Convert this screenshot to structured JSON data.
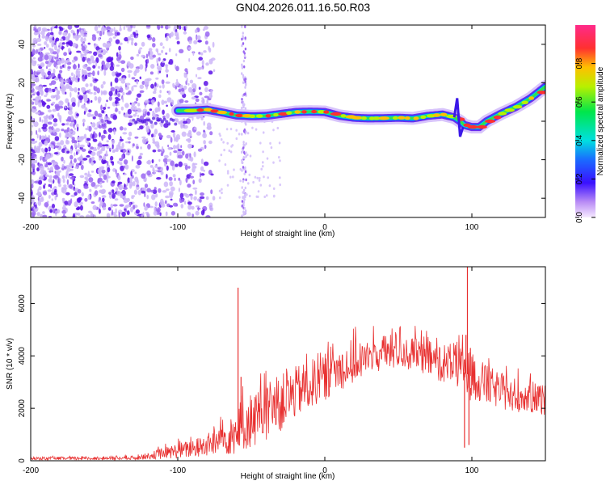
{
  "title": "GN04.2026.011.16.50.R03",
  "colors": {
    "background": "#ffffff",
    "snr_line": "#e83030",
    "frame": "#000000",
    "scatter": "#6a1fe0"
  },
  "chart_data": [
    {
      "type": "heatmap",
      "title": "GN04.2026.011.16.50.R03",
      "xlabel": "Height of straight line (km)",
      "ylabel": "Frequency (Hz)",
      "xlim": [
        -200,
        150
      ],
      "ylim": [
        -50,
        50
      ],
      "x_ticks": [
        -200,
        -100,
        0,
        100
      ],
      "x_tick_labels": [
        "-200",
        "-100",
        "0",
        "100"
      ],
      "y_ticks": [
        -40,
        -20,
        0,
        20,
        40
      ],
      "y_tick_labels": [
        "-40",
        "-20",
        "0",
        "20",
        "40"
      ],
      "colorbar": {
        "label": "Normalized spectral amplitude",
        "range": [
          0,
          1
        ],
        "ticks": [
          0.0,
          0.2,
          0.4,
          0.6,
          0.8
        ],
        "tick_labels": [
          "0.0",
          "0.2",
          "0.4",
          "0.6",
          "0.8"
        ]
      },
      "ridge": {
        "x": [
          -100,
          -90,
          -80,
          -70,
          -60,
          -50,
          -40,
          -30,
          -20,
          -10,
          0,
          10,
          20,
          30,
          40,
          50,
          60,
          70,
          80,
          88,
          92,
          95,
          100,
          105,
          110,
          120,
          130,
          140,
          150
        ],
        "y": [
          5.5,
          5.6,
          6.0,
          4.6,
          3.0,
          2.6,
          2.8,
          3.8,
          4.8,
          5.0,
          4.8,
          2.8,
          1.8,
          1.5,
          1.6,
          1.8,
          1.5,
          2.8,
          3.5,
          2.0,
          0.0,
          -2.0,
          -3.0,
          -3.0,
          0.0,
          4.0,
          7.5,
          12.0,
          18.0
        ]
      },
      "noise_region_km": [
        -200,
        -75
      ]
    },
    {
      "type": "line",
      "title": "",
      "xlabel": "Height of straight line (km)",
      "ylabel": "SNR (10 * v/v)",
      "xlim": [
        -200,
        150
      ],
      "ylim": [
        0,
        7400
      ],
      "x_ticks": [
        -200,
        -100,
        0,
        100
      ],
      "x_tick_labels": [
        "-200",
        "-100",
        "0",
        "100"
      ],
      "y_ticks": [
        0,
        2000,
        4000,
        6000
      ],
      "y_tick_labels": [
        "0",
        "2000",
        "4000",
        "6000"
      ],
      "envelope": {
        "x": [
          -200,
          -160,
          -130,
          -120,
          -110,
          -100,
          -90,
          -80,
          -70,
          -62,
          -58,
          -54,
          -50,
          -40,
          -30,
          -20,
          -10,
          0,
          10,
          20,
          30,
          40,
          50,
          60,
          70,
          80,
          90,
          94,
          97,
          100,
          110,
          120,
          130,
          140,
          150
        ],
        "base": [
          80,
          90,
          100,
          180,
          280,
          380,
          450,
          600,
          800,
          1000,
          1200,
          1400,
          1550,
          1800,
          2200,
          2600,
          2900,
          3200,
          3500,
          3750,
          3950,
          4100,
          4150,
          4050,
          3900,
          3750,
          3600,
          3400,
          3300,
          3200,
          2900,
          2650,
          2500,
          2400,
          2300
        ],
        "spread": [
          60,
          70,
          80,
          120,
          220,
          300,
          350,
          450,
          600,
          800,
          900,
          1000,
          1100,
          1100,
          1100,
          1000,
          950,
          900,
          850,
          800,
          700,
          700,
          650,
          650,
          700,
          750,
          800,
          900,
          1000,
          900,
          750,
          700,
          650,
          600,
          600
        ]
      },
      "spikes": [
        {
          "x": -59,
          "y": 6600
        },
        {
          "x": -58,
          "y": 1100
        },
        {
          "x": -57,
          "y": 3200
        },
        {
          "x": 95,
          "y": 500
        },
        {
          "x": 96,
          "y": 4800
        },
        {
          "x": 97,
          "y": 7400
        },
        {
          "x": 98,
          "y": 600
        },
        {
          "x": 99,
          "y": 4300
        }
      ]
    }
  ]
}
